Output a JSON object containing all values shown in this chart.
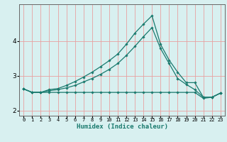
{
  "xlabel": "Humidex (Indice chaleur)",
  "x_values": [
    0,
    1,
    2,
    3,
    4,
    5,
    6,
    7,
    8,
    9,
    10,
    11,
    12,
    13,
    14,
    15,
    16,
    17,
    18,
    19,
    20,
    21,
    22,
    23
  ],
  "line1": [
    2.62,
    2.52,
    2.52,
    2.52,
    2.52,
    2.52,
    2.52,
    2.52,
    2.52,
    2.52,
    2.52,
    2.52,
    2.52,
    2.52,
    2.52,
    2.52,
    2.52,
    2.52,
    2.52,
    2.52,
    2.52,
    2.35,
    2.38,
    2.5
  ],
  "line2": [
    2.62,
    2.52,
    2.52,
    2.6,
    2.63,
    2.72,
    2.83,
    2.96,
    3.1,
    3.26,
    3.43,
    3.62,
    3.9,
    4.22,
    4.48,
    4.72,
    3.9,
    3.45,
    3.1,
    2.8,
    2.8,
    2.38,
    2.38,
    2.5
  ],
  "line3": [
    2.62,
    2.52,
    2.52,
    2.57,
    2.6,
    2.65,
    2.72,
    2.82,
    2.92,
    3.04,
    3.18,
    3.35,
    3.58,
    3.84,
    4.12,
    4.38,
    3.78,
    3.35,
    2.92,
    2.75,
    2.6,
    2.38,
    2.38,
    2.5
  ],
  "line_color": "#1a7a6e",
  "bg_color": "#d8f0f0",
  "plot_bg_color": "#d8f0f0",
  "grid_color": "#e8a0a0",
  "marker": "D",
  "marker_size": 1.8,
  "ylim": [
    1.85,
    5.05
  ],
  "yticks": [
    2,
    3,
    4
  ],
  "xlim": [
    -0.5,
    23.5
  ],
  "linewidth": 0.9
}
